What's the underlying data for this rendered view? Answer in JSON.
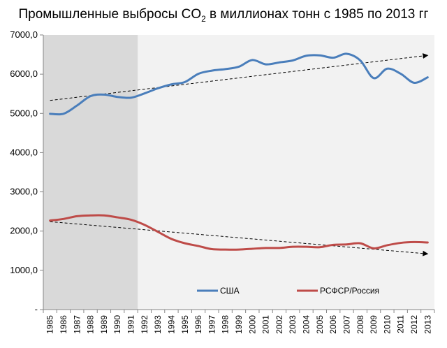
{
  "chart_data": {
    "type": "line",
    "title_parts": [
      "Промышленные выбросы CO",
      "2",
      " в миллионах тонн с 1985 по 2013 гг"
    ],
    "x": [
      1985,
      1986,
      1987,
      1988,
      1989,
      1990,
      1991,
      1992,
      1993,
      1994,
      1995,
      1996,
      1997,
      1998,
      1999,
      2000,
      2001,
      2002,
      2003,
      2004,
      2005,
      2006,
      2007,
      2008,
      2009,
      2010,
      2011,
      2012,
      2013
    ],
    "x_labels": [
      "1985",
      "1986",
      "1987",
      "1988",
      "1989",
      "1990",
      "1991",
      "1992",
      "1993",
      "1994",
      "1995",
      "1996",
      "1997",
      "1998",
      "1999",
      "2000",
      "2001",
      "2002",
      "2003",
      "2004",
      "2005",
      "2006",
      "2007",
      "2008",
      "2009",
      "2010",
      "2011",
      "2012",
      "2013"
    ],
    "y_ticks": [
      0,
      1000,
      2000,
      3000,
      4000,
      5000,
      6000,
      7000
    ],
    "y_tick_labels": [
      "-",
      "1000,0",
      "2000,0",
      "3000,0",
      "4000,0",
      "5000,0",
      "6000,0",
      "7000,0"
    ],
    "ylim": [
      0,
      7000
    ],
    "shaded_region": {
      "from": 1985,
      "to": 1991,
      "color": "#d9d9d9"
    },
    "plot_background": "#f2f2f2",
    "series": [
      {
        "name": "США",
        "color": "#4a7ebb",
        "values": [
          4990,
          4990,
          5200,
          5440,
          5480,
          5420,
          5400,
          5510,
          5640,
          5740,
          5800,
          6010,
          6090,
          6130,
          6190,
          6360,
          6250,
          6300,
          6350,
          6470,
          6480,
          6420,
          6520,
          6350,
          5900,
          6140,
          6010,
          5780,
          5920
        ]
      },
      {
        "name": "РСФСР/Россия",
        "color": "#be4b48",
        "values": [
          2270,
          2310,
          2380,
          2400,
          2400,
          2350,
          2290,
          2160,
          1980,
          1800,
          1690,
          1620,
          1540,
          1530,
          1530,
          1550,
          1570,
          1570,
          1600,
          1600,
          1590,
          1650,
          1660,
          1690,
          1560,
          1640,
          1700,
          1720,
          1710
        ]
      }
    ],
    "trendlines": [
      {
        "x": [
          1985,
          2013
        ],
        "y": [
          5330,
          6480
        ],
        "style": "dashed"
      },
      {
        "x": [
          1985,
          2013
        ],
        "y": [
          2240,
          1420
        ],
        "style": "dashed"
      }
    ],
    "legend_position": "bottom-inside"
  }
}
